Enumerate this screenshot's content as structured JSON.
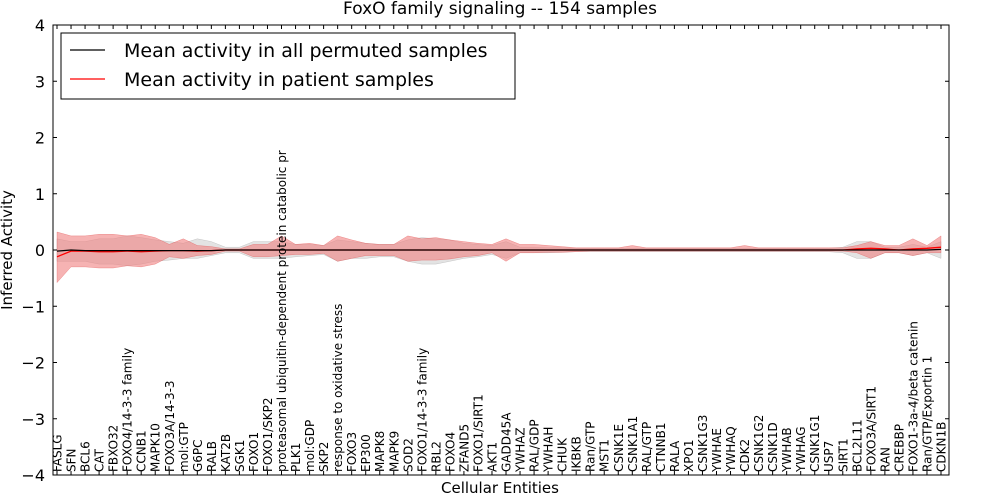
{
  "chart_data": {
    "type": "line",
    "title": "FoxO family signaling -- 154 samples",
    "xlabel": "Cellular Entities",
    "ylabel": "Inferred Activity",
    "ylim": [
      -4,
      4
    ],
    "yticks": [
      -4,
      -3,
      -2,
      -1,
      0,
      1,
      2,
      3,
      4
    ],
    "ytick_labels": [
      "−4",
      "−3",
      "−2",
      "−1",
      "0",
      "1",
      "2",
      "3",
      "4"
    ],
    "grid": false,
    "legend_position": "top-left",
    "categories": [
      "FASLG",
      "SFN",
      "BCL6",
      "CAT",
      "FBXO32",
      "FOXO4/14-3-3 family",
      "CCNB1",
      "MAPK10",
      "FOXO3A/14-3-3",
      "mol:GTP",
      "G6PC",
      "RALB",
      "KAT2B",
      "SGK1",
      "FOXO1",
      "FOXO1/SKP2",
      "proteasomal ubiquitin-dependent protein catabolic pr",
      "PLK1",
      "mol:GDP",
      "SKP2",
      "response to oxidative stress",
      "FOXO3",
      "EP300",
      "MAPK8",
      "MAPK9",
      "SOD2",
      "FOXO1/14-3-3 family",
      "RBL2",
      "FOXO4",
      "ZFAND5",
      "FOXO1/SIRT1",
      "AKT1",
      "GADD45A",
      "YWHAZ",
      "RAL/GDP",
      "YWHAH",
      "CHUK",
      "IKBKB",
      "Ran/GTP",
      "MST1",
      "CSNK1E",
      "CSNK1A1",
      "RAL/GTP",
      "CTNNB1",
      "RALA",
      "XPO1",
      "CSNK1G3",
      "YWHAE",
      "YWHAQ",
      "CDK2",
      "CSNK1G2",
      "CSNK1D",
      "YWHAB",
      "YWHAG",
      "CSNK1G1",
      "USP7",
      "SIRT1",
      "BCL2L11",
      "FOXO3A/SIRT1",
      "RAN",
      "CREBBP",
      "FOXO1-3a-4/beta catenin",
      "Ran/GTP/Exportin 1",
      "CDKN1B"
    ],
    "series": [
      {
        "name": "Mean activity in all permuted samples",
        "color": "#000000",
        "values": [
          -0.02,
          0.0,
          -0.01,
          -0.01,
          -0.01,
          -0.01,
          -0.01,
          -0.01,
          -0.01,
          -0.01,
          -0.01,
          -0.01,
          0.0,
          0.0,
          0.0,
          0.0,
          0.0,
          0.0,
          0.0,
          0.0,
          0.0,
          0.0,
          0.0,
          0.0,
          0.0,
          0.0,
          0.0,
          0.0,
          0.0,
          0.0,
          0.0,
          0.0,
          0.0,
          0.0,
          0.0,
          0.0,
          0.0,
          0.0,
          0.0,
          0.0,
          0.0,
          0.0,
          0.0,
          0.0,
          0.0,
          0.0,
          0.0,
          0.0,
          0.0,
          0.0,
          0.0,
          0.0,
          0.0,
          0.0,
          0.0,
          0.0,
          0.0,
          0.0,
          0.0,
          0.0,
          0.0,
          0.0,
          0.0,
          0.01
        ],
        "band_lower": [
          -0.2,
          -0.2,
          -0.2,
          -0.25,
          -0.25,
          -0.28,
          -0.25,
          -0.2,
          -0.18,
          -0.15,
          -0.15,
          -0.1,
          -0.05,
          -0.05,
          -0.15,
          -0.15,
          -0.15,
          -0.12,
          -0.1,
          -0.08,
          -0.2,
          -0.15,
          -0.15,
          -0.12,
          -0.12,
          -0.2,
          -0.25,
          -0.25,
          -0.2,
          -0.15,
          -0.12,
          -0.08,
          -0.15,
          -0.05,
          -0.05,
          -0.05,
          -0.04,
          -0.03,
          -0.03,
          -0.03,
          -0.03,
          -0.03,
          -0.03,
          -0.03,
          -0.03,
          -0.03,
          -0.03,
          -0.03,
          -0.03,
          -0.03,
          -0.03,
          -0.03,
          -0.03,
          -0.03,
          -0.03,
          -0.03,
          -0.05,
          -0.15,
          -0.15,
          -0.05,
          -0.05,
          -0.1,
          -0.05,
          -0.15
        ],
        "band_upper": [
          0.2,
          0.15,
          0.15,
          0.2,
          0.2,
          0.25,
          0.22,
          0.18,
          0.15,
          0.12,
          0.2,
          0.15,
          0.05,
          0.05,
          0.15,
          0.15,
          0.15,
          0.1,
          0.1,
          0.08,
          0.18,
          0.15,
          0.12,
          0.1,
          0.1,
          0.18,
          0.22,
          0.2,
          0.18,
          0.12,
          0.1,
          0.08,
          0.15,
          0.05,
          0.05,
          0.04,
          0.04,
          0.03,
          0.03,
          0.03,
          0.03,
          0.03,
          0.03,
          0.03,
          0.03,
          0.03,
          0.03,
          0.03,
          0.03,
          0.03,
          0.03,
          0.03,
          0.03,
          0.03,
          0.03,
          0.03,
          0.05,
          0.15,
          0.15,
          0.05,
          0.05,
          0.1,
          0.05,
          0.15
        ]
      },
      {
        "name": "Mean activity in patient samples",
        "color": "#ff0000",
        "values": [
          -0.12,
          -0.02,
          -0.02,
          -0.03,
          -0.03,
          -0.02,
          -0.03,
          -0.02,
          -0.01,
          -0.01,
          -0.02,
          -0.01,
          0.0,
          0.0,
          0.0,
          0.0,
          0.0,
          0.0,
          0.0,
          0.0,
          0.0,
          0.0,
          0.0,
          0.0,
          0.0,
          0.0,
          0.0,
          0.0,
          0.0,
          0.0,
          0.0,
          0.0,
          0.0,
          0.0,
          0.0,
          0.0,
          0.0,
          0.0,
          0.0,
          0.0,
          0.0,
          0.0,
          0.0,
          0.0,
          0.0,
          0.0,
          0.0,
          0.0,
          0.0,
          0.0,
          0.0,
          0.0,
          0.0,
          0.0,
          0.0,
          0.0,
          0.0,
          0.02,
          0.03,
          0.02,
          0.0,
          0.02,
          0.03,
          0.05
        ],
        "band_lower": [
          -0.58,
          -0.3,
          -0.3,
          -0.32,
          -0.32,
          -0.28,
          -0.3,
          -0.25,
          -0.12,
          -0.15,
          -0.1,
          -0.08,
          -0.02,
          -0.02,
          -0.12,
          -0.12,
          -0.1,
          -0.08,
          -0.08,
          -0.06,
          -0.2,
          -0.15,
          -0.1,
          -0.1,
          -0.1,
          -0.2,
          -0.18,
          -0.18,
          -0.16,
          -0.12,
          -0.1,
          -0.05,
          -0.2,
          -0.05,
          -0.05,
          -0.04,
          -0.04,
          -0.03,
          -0.02,
          -0.02,
          -0.02,
          -0.02,
          -0.02,
          -0.02,
          -0.02,
          -0.02,
          -0.02,
          -0.02,
          -0.02,
          -0.02,
          -0.02,
          -0.02,
          -0.02,
          -0.02,
          -0.02,
          -0.02,
          -0.02,
          -0.05,
          -0.15,
          -0.05,
          -0.05,
          -0.1,
          -0.05,
          -0.05
        ],
        "band_upper": [
          0.32,
          0.25,
          0.25,
          0.28,
          0.28,
          0.25,
          0.28,
          0.22,
          0.1,
          0.2,
          0.08,
          0.06,
          0.02,
          0.02,
          0.1,
          0.1,
          0.25,
          0.1,
          0.12,
          0.08,
          0.25,
          0.18,
          0.12,
          0.1,
          0.1,
          0.25,
          0.2,
          0.22,
          0.18,
          0.15,
          0.12,
          0.1,
          0.2,
          0.1,
          0.1,
          0.08,
          0.06,
          0.04,
          0.04,
          0.04,
          0.04,
          0.08,
          0.04,
          0.04,
          0.04,
          0.04,
          0.04,
          0.04,
          0.04,
          0.08,
          0.04,
          0.04,
          0.04,
          0.04,
          0.04,
          0.04,
          0.04,
          0.08,
          0.15,
          0.08,
          0.08,
          0.2,
          0.08,
          0.25
        ]
      }
    ]
  }
}
